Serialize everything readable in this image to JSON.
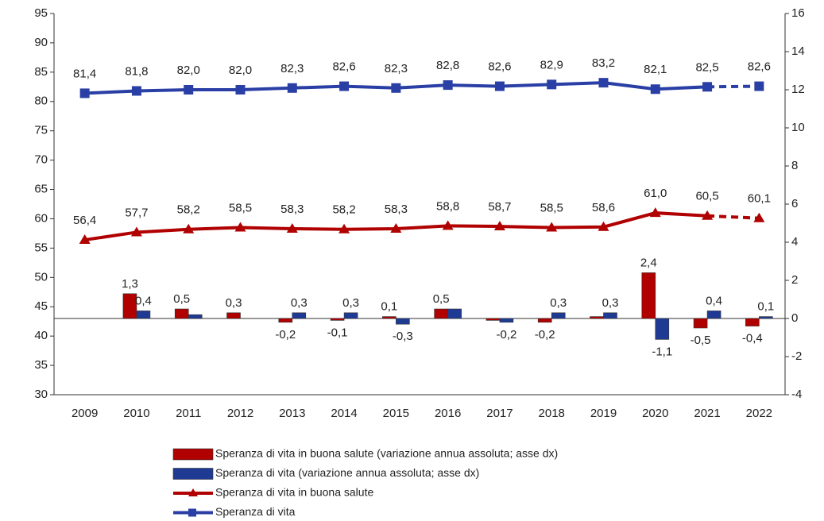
{
  "chart_data": {
    "type": "combo",
    "categories": [
      "2009",
      "2010",
      "2011",
      "2012",
      "2013",
      "2014",
      "2015",
      "2016",
      "2017",
      "2018",
      "2019",
      "2020",
      "2021",
      "2022"
    ],
    "ylim": [
      30,
      95
    ],
    "yticks": [
      30,
      35,
      40,
      45,
      50,
      55,
      60,
      65,
      70,
      75,
      80,
      85,
      90,
      95
    ],
    "y2lim": [
      -4,
      16
    ],
    "y2ticks": [
      -4,
      -2,
      0,
      2,
      4,
      6,
      8,
      10,
      12,
      14,
      16
    ],
    "dashed_last_segment": true,
    "series": [
      {
        "name": "Speranza di vita in buona salute (variazione annua assoluta; asse dx)",
        "type": "bar",
        "axis": "y2",
        "color": "#b00000",
        "values": [
          null,
          1.3,
          0.5,
          0.3,
          -0.2,
          -0.1,
          0.1,
          0.5,
          -0.1,
          -0.2,
          0.1,
          2.4,
          -0.5,
          -0.4
        ],
        "value_labels": [
          null,
          "1,3",
          "0,5",
          "0,3",
          "-0,2",
          "-0,1",
          "0,1",
          "0,5",
          null,
          "-0,2",
          null,
          "2,4",
          "-0,5",
          "-0,4"
        ]
      },
      {
        "name": "Speranza di vita (variazione annua assoluta; asse dx)",
        "type": "bar",
        "axis": "y2",
        "color": "#1f3a93",
        "values": [
          null,
          0.4,
          0.2,
          0.0,
          0.3,
          0.3,
          -0.3,
          0.5,
          -0.2,
          0.3,
          0.3,
          -1.1,
          0.4,
          0.1
        ],
        "value_labels": [
          null,
          "0,4",
          null,
          null,
          "0,3",
          "0,3",
          "-0,3",
          null,
          "-0,2",
          "0,3",
          "0,3",
          "-1,1",
          "0,4",
          "0,1"
        ]
      },
      {
        "name": "Speranza di vita in buona salute",
        "type": "line",
        "marker": "triangle",
        "color": "#b00000",
        "values": [
          56.4,
          57.7,
          58.2,
          58.5,
          58.3,
          58.2,
          58.3,
          58.8,
          58.7,
          58.5,
          58.6,
          61.0,
          60.5,
          60.1
        ],
        "value_labels": [
          "56,4",
          "57,7",
          "58,2",
          "58,5",
          "58,3",
          "58,2",
          "58,3",
          "58,8",
          "58,7",
          "58,5",
          "58,6",
          "61,0",
          "60,5",
          "60,1"
        ]
      },
      {
        "name": "Speranza di vita",
        "type": "line",
        "marker": "square",
        "color": "#2a3fa6",
        "values": [
          81.4,
          81.8,
          82.0,
          82.0,
          82.3,
          82.6,
          82.3,
          82.8,
          82.6,
          82.9,
          83.2,
          82.1,
          82.5,
          82.6
        ],
        "value_labels": [
          "81,4",
          "81,8",
          "82,0",
          "82,0",
          "82,3",
          "82,6",
          "82,3",
          "82,8",
          "82,6",
          "82,9",
          "83,2",
          "82,1",
          "82,5",
          "82,6"
        ]
      }
    ]
  }
}
